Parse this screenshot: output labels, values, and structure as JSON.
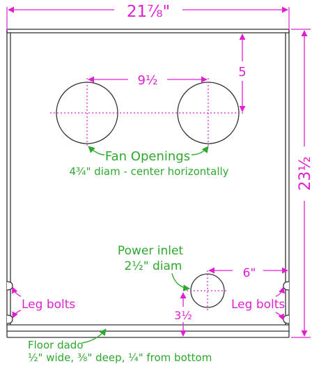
{
  "diagram": {
    "overall_width": "21⅞\"",
    "overall_height": "23½",
    "fan_spacing": "9½",
    "fan_top_offset": "5",
    "fan_label": "Fan Openings",
    "fan_sublabel": "4¾\" diam - center horizontally",
    "power_label_line1": "Power inlet",
    "power_label_line2": "2½\" diam",
    "power_side_offset": "6\"",
    "power_bottom_offset": "3½",
    "leg_bolts_left": "Leg bolts",
    "leg_bolts_right": "Leg bolts",
    "floor_label": "Floor dado",
    "floor_sublabel": "½\" wide, ⅜\" deep, ¼\" from bottom",
    "colors": {
      "dimension": "#e020d0",
      "label": "#2ea82e",
      "outline": "#333333"
    }
  }
}
